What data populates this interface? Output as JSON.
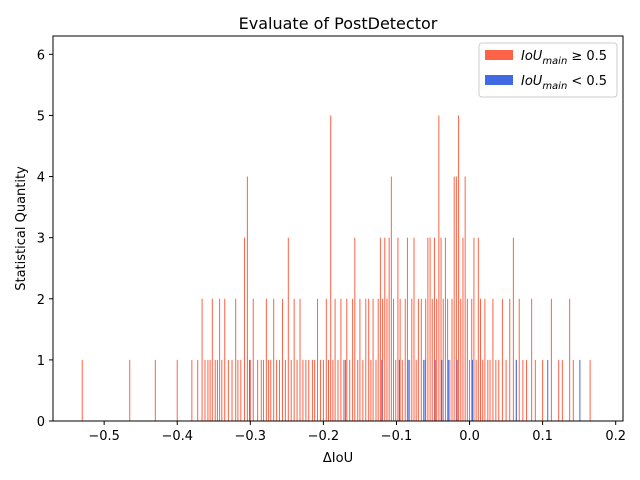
{
  "chart_data": {
    "type": "bar",
    "title": "Evaluate of PostDetector",
    "xlabel": "ΔIoU",
    "ylabel": "Statistical Quantity",
    "xlim": [
      -0.57,
      0.21
    ],
    "ylim": [
      0,
      6.3
    ],
    "x_ticks": [
      -0.5,
      -0.4,
      -0.3,
      -0.2,
      -0.1,
      0.0,
      0.1,
      0.2
    ],
    "x_tick_labels": [
      "−0.5",
      "−0.4",
      "−0.3",
      "−0.2",
      "−0.1",
      "0.0",
      "0.1",
      "0.2"
    ],
    "y_ticks": [
      0,
      1,
      2,
      3,
      4,
      5,
      6
    ],
    "y_tick_labels": [
      "0",
      "1",
      "2",
      "3",
      "4",
      "5",
      "6"
    ],
    "grid": false,
    "legend_position": "top-right",
    "series": [
      {
        "name": "IoU_main ≥ 0.5",
        "color": "#ff6347",
        "points": [
          [
            -0.53,
            1
          ],
          [
            -0.465,
            1
          ],
          [
            -0.43,
            1
          ],
          [
            -0.4,
            1
          ],
          [
            -0.38,
            1
          ],
          [
            -0.372,
            1
          ],
          [
            -0.366,
            2
          ],
          [
            -0.362,
            1
          ],
          [
            -0.358,
            1
          ],
          [
            -0.355,
            1
          ],
          [
            -0.352,
            2
          ],
          [
            -0.348,
            1
          ],
          [
            -0.345,
            1
          ],
          [
            -0.342,
            2
          ],
          [
            -0.339,
            1
          ],
          [
            -0.335,
            2
          ],
          [
            -0.33,
            1
          ],
          [
            -0.325,
            1
          ],
          [
            -0.32,
            2
          ],
          [
            -0.317,
            1
          ],
          [
            -0.313,
            1
          ],
          [
            -0.308,
            3
          ],
          [
            -0.304,
            4
          ],
          [
            -0.3,
            1
          ],
          [
            -0.296,
            2
          ],
          [
            -0.29,
            1
          ],
          [
            -0.285,
            1
          ],
          [
            -0.282,
            1
          ],
          [
            -0.278,
            2
          ],
          [
            -0.275,
            1
          ],
          [
            -0.272,
            1
          ],
          [
            -0.268,
            2
          ],
          [
            -0.264,
            1
          ],
          [
            -0.26,
            1
          ],
          [
            -0.256,
            2
          ],
          [
            -0.252,
            1
          ],
          [
            -0.248,
            3
          ],
          [
            -0.244,
            1
          ],
          [
            -0.24,
            2
          ],
          [
            -0.236,
            1
          ],
          [
            -0.232,
            2
          ],
          [
            -0.228,
            1
          ],
          [
            -0.224,
            1
          ],
          [
            -0.22,
            1
          ],
          [
            -0.215,
            1
          ],
          [
            -0.212,
            1
          ],
          [
            -0.208,
            2
          ],
          [
            -0.204,
            1
          ],
          [
            -0.2,
            1
          ],
          [
            -0.196,
            2
          ],
          [
            -0.193,
            1
          ],
          [
            -0.19,
            5
          ],
          [
            -0.187,
            1
          ],
          [
            -0.184,
            2
          ],
          [
            -0.18,
            1
          ],
          [
            -0.176,
            2
          ],
          [
            -0.172,
            1
          ],
          [
            -0.168,
            2
          ],
          [
            -0.164,
            1
          ],
          [
            -0.16,
            2
          ],
          [
            -0.157,
            3
          ],
          [
            -0.153,
            1
          ],
          [
            -0.15,
            2
          ],
          [
            -0.146,
            1
          ],
          [
            -0.142,
            2
          ],
          [
            -0.138,
            2
          ],
          [
            -0.135,
            1
          ],
          [
            -0.132,
            2
          ],
          [
            -0.128,
            1
          ],
          [
            -0.125,
            2
          ],
          [
            -0.122,
            3
          ],
          [
            -0.119,
            2
          ],
          [
            -0.116,
            3
          ],
          [
            -0.113,
            2
          ],
          [
            -0.11,
            3
          ],
          [
            -0.107,
            4
          ],
          [
            -0.104,
            2
          ],
          [
            -0.101,
            1
          ],
          [
            -0.098,
            3
          ],
          [
            -0.095,
            2
          ],
          [
            -0.092,
            1
          ],
          [
            -0.088,
            2
          ],
          [
            -0.085,
            3
          ],
          [
            -0.082,
            1
          ],
          [
            -0.079,
            2
          ],
          [
            -0.076,
            3
          ],
          [
            -0.073,
            1
          ],
          [
            -0.07,
            2
          ],
          [
            -0.066,
            2
          ],
          [
            -0.063,
            1
          ],
          [
            -0.06,
            2
          ],
          [
            -0.057,
            3
          ],
          [
            -0.054,
            3
          ],
          [
            -0.051,
            2
          ],
          [
            -0.048,
            3
          ],
          [
            -0.045,
            2
          ],
          [
            -0.042,
            5
          ],
          [
            -0.039,
            3
          ],
          [
            -0.036,
            2
          ],
          [
            -0.033,
            3
          ],
          [
            -0.03,
            2
          ],
          [
            -0.027,
            1
          ],
          [
            -0.024,
            2
          ],
          [
            -0.021,
            4
          ],
          [
            -0.018,
            4
          ],
          [
            -0.015,
            5
          ],
          [
            -0.012,
            2
          ],
          [
            -0.009,
            3
          ],
          [
            -0.006,
            4
          ],
          [
            -0.003,
            2
          ],
          [
            0.0,
            1
          ],
          [
            0.003,
            2
          ],
          [
            0.006,
            3
          ],
          [
            0.009,
            1
          ],
          [
            0.012,
            3
          ],
          [
            0.015,
            2
          ],
          [
            0.018,
            1
          ],
          [
            0.021,
            2
          ],
          [
            0.025,
            1
          ],
          [
            0.028,
            1
          ],
          [
            0.032,
            2
          ],
          [
            0.036,
            1
          ],
          [
            0.04,
            1
          ],
          [
            0.045,
            2
          ],
          [
            0.05,
            1
          ],
          [
            0.055,
            2
          ],
          [
            0.06,
            3
          ],
          [
            0.064,
            1
          ],
          [
            0.068,
            2
          ],
          [
            0.073,
            1
          ],
          [
            0.078,
            1
          ],
          [
            0.085,
            2
          ],
          [
            0.09,
            1
          ],
          [
            0.1,
            1
          ],
          [
            0.112,
            2
          ],
          [
            0.122,
            1
          ],
          [
            0.127,
            1
          ],
          [
            0.137,
            2
          ],
          [
            0.142,
            1
          ],
          [
            0.165,
            1
          ]
        ]
      },
      {
        "name": "IoU_main < 0.5",
        "color": "#4169e1",
        "points": [
          [
            -0.301,
            1
          ],
          [
            -0.17,
            1
          ],
          [
            -0.12,
            1
          ],
          [
            -0.096,
            1
          ],
          [
            -0.084,
            1
          ],
          [
            -0.061,
            1
          ],
          [
            -0.047,
            1
          ],
          [
            -0.038,
            1
          ],
          [
            -0.029,
            1
          ],
          [
            -0.017,
            1
          ],
          [
            0.004,
            1
          ],
          [
            0.064,
            1
          ],
          [
            0.107,
            1
          ],
          [
            0.151,
            1
          ]
        ]
      }
    ]
  },
  "legend": {
    "items": [
      {
        "base": "IoU",
        "sub": "main",
        "rel": "≥ 0.5",
        "color": "#ff6347"
      },
      {
        "base": "IoU",
        "sub": "main",
        "rel": "< 0.5",
        "color": "#4169e1"
      }
    ]
  }
}
